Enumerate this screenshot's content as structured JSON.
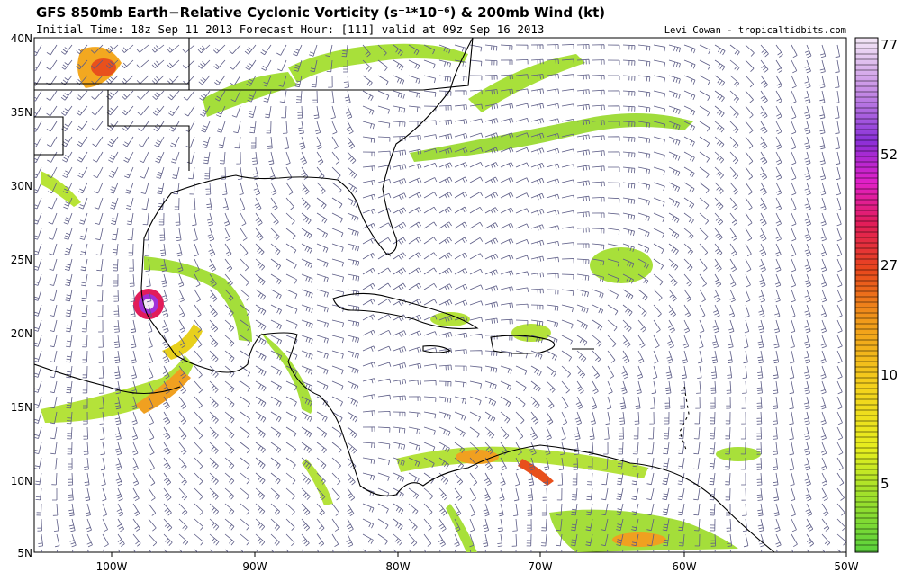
{
  "header": {
    "title": "GFS 850mb Earth−Relative Cyclonic Vorticity (s⁻¹*10⁻⁶) & 200mb Wind (kt)",
    "subtitle": "Initial Time: 18z Sep 11 2013 Forecast Hour: [111] valid at 09z Sep 16 2013",
    "credit": "Levi Cowan - tropicaltidbits.com"
  },
  "map": {
    "lat_labels": [
      "40N",
      "35N",
      "30N",
      "25N",
      "20N",
      "15N",
      "10N",
      "5N"
    ],
    "lon_labels": [
      "100W",
      "90W",
      "80W",
      "70W",
      "60W",
      "50W"
    ]
  },
  "colorbar": {
    "labels": [
      "77",
      "52",
      "27",
      "10",
      "5"
    ]
  }
}
